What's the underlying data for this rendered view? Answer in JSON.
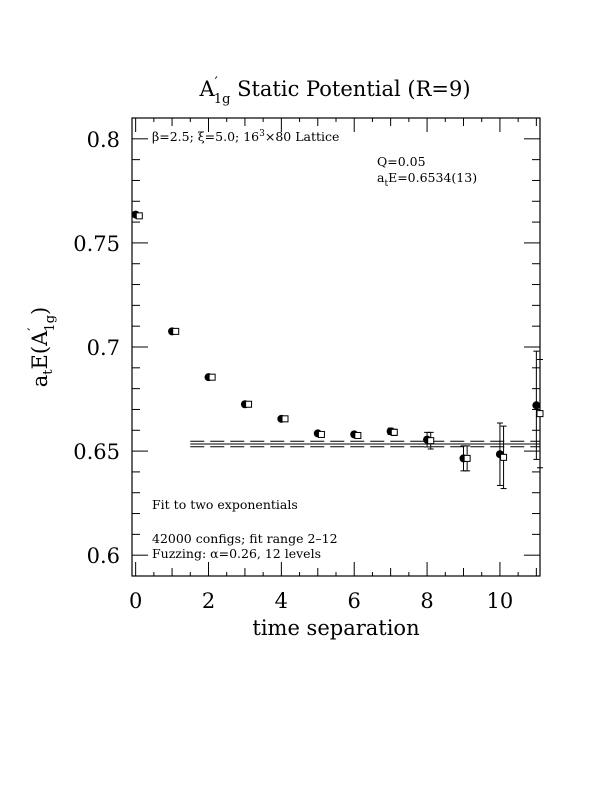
{
  "chart_data": {
    "type": "scatter",
    "title": {
      "main": "A",
      "prime": "′",
      "sub": "1g",
      "rest": " Static Potential (R=9)"
    },
    "xlabel": "time separation",
    "ylabel": {
      "pre": "a",
      "pre_sub": "t",
      "mid": "E(A",
      "prime": "′",
      "sub": "1g",
      "post": ")"
    },
    "xlim": [
      -0.1,
      11.1
    ],
    "ylim": [
      0.59,
      0.81
    ],
    "x_ticks": [
      "0",
      "2",
      "4",
      "6",
      "8",
      "10"
    ],
    "x_tick_values": [
      0,
      2,
      4,
      6,
      8,
      10
    ],
    "y_ticks": [
      "0.6",
      "0.65",
      "0.7",
      "0.75",
      "0.8"
    ],
    "y_tick_values": [
      0.6,
      0.65,
      0.7,
      0.75,
      0.8
    ],
    "annotations": {
      "lattice": {
        "beta": "β",
        "text1": "=2.5; ",
        "xi": "ξ",
        "text2": "=5.0; 16",
        "sup": "3",
        "text3": "×80 Lattice"
      },
      "q": "Q=0.05",
      "energy": {
        "pre": "a",
        "sub": "t",
        "post": "E=0.6534(13)"
      },
      "fit": "Fit to two exponentials",
      "configs": "42000 configs; fit range 2–12",
      "fuzzing": {
        "pre": "Fuzzing: ",
        "alpha": "α",
        "post": "=0.26, 12 levels"
      }
    },
    "series": [
      {
        "marker": "filled-circle",
        "x": [
          0,
          1,
          2,
          3,
          4,
          5,
          6,
          7,
          8,
          9,
          10,
          11
        ],
        "y": [
          0.7636,
          0.7075,
          0.6855,
          0.6725,
          0.6655,
          0.6585,
          0.658,
          0.6595,
          0.6555,
          0.6465,
          0.6485,
          0.672
        ],
        "err": [
          0.0005,
          0.0005,
          0.0005,
          0.0005,
          0.0005,
          0.0007,
          0.001,
          0.0015,
          0.0035,
          0.006,
          0.015,
          0.026
        ]
      },
      {
        "marker": "open-square",
        "x": [
          0.1,
          1.1,
          2.1,
          3.1,
          4.1,
          5.1,
          6.1,
          7.1,
          8.1,
          9.1,
          10.1,
          11.1
        ],
        "y": [
          0.763,
          0.7075,
          0.6855,
          0.6725,
          0.6655,
          0.658,
          0.6575,
          0.659,
          0.655,
          0.6465,
          0.647,
          0.668
        ],
        "err": [
          0.0005,
          0.0005,
          0.0005,
          0.0005,
          0.0005,
          0.0007,
          0.001,
          0.0015,
          0.004,
          0.006,
          0.015,
          0.026
        ]
      }
    ],
    "fit": {
      "x_range": [
        1.5,
        11.1
      ],
      "value": 0.6534,
      "error": 0.0013
    }
  }
}
